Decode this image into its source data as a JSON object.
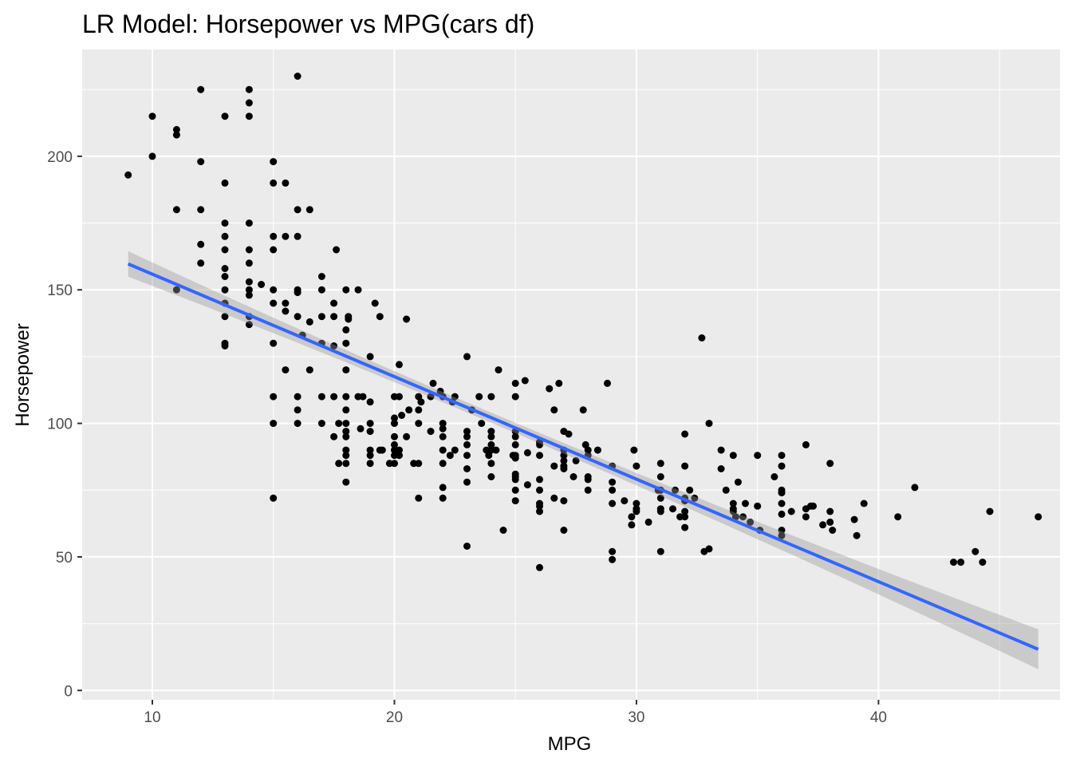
{
  "chart_data": {
    "type": "scatter",
    "title": "LR Model: Horsepower vs MPG(cars df)",
    "xlabel": "MPG",
    "ylabel": "Horsepower",
    "xlim": [
      7.1,
      47.5
    ],
    "ylim": [
      -3.5,
      240
    ],
    "x_ticks": [
      10,
      20,
      30,
      40
    ],
    "y_ticks": [
      0,
      50,
      100,
      150,
      200
    ],
    "x_tick_labels": [
      "10",
      "20",
      "30",
      "40"
    ],
    "y_tick_labels": [
      "0",
      "50",
      "100",
      "150",
      "200"
    ],
    "grid": true,
    "legend": "none",
    "colors": {
      "panel_background": "#ebebeb",
      "grid": "#ffffff",
      "points": "#000000",
      "fit_line": "#3366ff",
      "confidence_band": "#999999"
    },
    "regression": {
      "x": [
        9,
        46.6
      ],
      "y": [
        159.7,
        15.4
      ],
      "ci_halfwidth_ends": [
        4.8,
        7.5
      ],
      "ci_halfwidth_center": 1.9,
      "x_center": 23.5
    },
    "points": [
      [
        9,
        193
      ],
      [
        10,
        215
      ],
      [
        10,
        200
      ],
      [
        11,
        210
      ],
      [
        11,
        208
      ],
      [
        11,
        180
      ],
      [
        11,
        150
      ],
      [
        12,
        225
      ],
      [
        12,
        198
      ],
      [
        12,
        180
      ],
      [
        12,
        167
      ],
      [
        12,
        160
      ],
      [
        13,
        215
      ],
      [
        13,
        190
      ],
      [
        13,
        175
      ],
      [
        13,
        170
      ],
      [
        13,
        165
      ],
      [
        13,
        158
      ],
      [
        13,
        155
      ],
      [
        13,
        150
      ],
      [
        13,
        145
      ],
      [
        13,
        140
      ],
      [
        13,
        130
      ],
      [
        13,
        129
      ],
      [
        14,
        225
      ],
      [
        14,
        220
      ],
      [
        14,
        215
      ],
      [
        14,
        175
      ],
      [
        14,
        165
      ],
      [
        14,
        160
      ],
      [
        14,
        153
      ],
      [
        14,
        150
      ],
      [
        14,
        148
      ],
      [
        14,
        140
      ],
      [
        14,
        137
      ],
      [
        14.5,
        152
      ],
      [
        15,
        198
      ],
      [
        15,
        190
      ],
      [
        15,
        170
      ],
      [
        15,
        165
      ],
      [
        15,
        150
      ],
      [
        15,
        145
      ],
      [
        15,
        130
      ],
      [
        15,
        110
      ],
      [
        15,
        100
      ],
      [
        15,
        72
      ],
      [
        15.5,
        190
      ],
      [
        15.5,
        170
      ],
      [
        15.5,
        145
      ],
      [
        15.5,
        142
      ],
      [
        15.5,
        120
      ],
      [
        16,
        230
      ],
      [
        16,
        180
      ],
      [
        16,
        170
      ],
      [
        16,
        150
      ],
      [
        16,
        149
      ],
      [
        16,
        140
      ],
      [
        16,
        110
      ],
      [
        16,
        105
      ],
      [
        16,
        100
      ],
      [
        16.2,
        133
      ],
      [
        16.5,
        180
      ],
      [
        16.5,
        138
      ],
      [
        16.5,
        120
      ],
      [
        17,
        155
      ],
      [
        17,
        150
      ],
      [
        17,
        140
      ],
      [
        17,
        130
      ],
      [
        17,
        110
      ],
      [
        17,
        100
      ],
      [
        17.5,
        145
      ],
      [
        17.5,
        140
      ],
      [
        17.5,
        129
      ],
      [
        17.5,
        110
      ],
      [
        17.5,
        95
      ],
      [
        17.6,
        165
      ],
      [
        17.7,
        85
      ],
      [
        17.7,
        100
      ],
      [
        18,
        150
      ],
      [
        18,
        135
      ],
      [
        18,
        130
      ],
      [
        18,
        120
      ],
      [
        18,
        110
      ],
      [
        18,
        105
      ],
      [
        18,
        100
      ],
      [
        18,
        97
      ],
      [
        18,
        95
      ],
      [
        18,
        90
      ],
      [
        18,
        88
      ],
      [
        18,
        85
      ],
      [
        18,
        78
      ],
      [
        18.1,
        140
      ],
      [
        18.1,
        139
      ],
      [
        18.5,
        150
      ],
      [
        18.5,
        110
      ],
      [
        18.6,
        98
      ],
      [
        18.7,
        110
      ],
      [
        19,
        125
      ],
      [
        19,
        108
      ],
      [
        19,
        100
      ],
      [
        19,
        97
      ],
      [
        19,
        90
      ],
      [
        19,
        88
      ],
      [
        19,
        85
      ],
      [
        19.2,
        145
      ],
      [
        19.4,
        140
      ],
      [
        19.4,
        90
      ],
      [
        19.5,
        90
      ],
      [
        19.8,
        85
      ],
      [
        20,
        110
      ],
      [
        20,
        102
      ],
      [
        20,
        100
      ],
      [
        20,
        95
      ],
      [
        20,
        92
      ],
      [
        20,
        90
      ],
      [
        20,
        88
      ],
      [
        20,
        85
      ],
      [
        20.2,
        122
      ],
      [
        20.2,
        110
      ],
      [
        20.2,
        90
      ],
      [
        20.2,
        88
      ],
      [
        20.3,
        103
      ],
      [
        20.5,
        139
      ],
      [
        20.5,
        95
      ],
      [
        20.6,
        105
      ],
      [
        20.8,
        85
      ],
      [
        21,
        110
      ],
      [
        21,
        105
      ],
      [
        21,
        100
      ],
      [
        21,
        85
      ],
      [
        21,
        72
      ],
      [
        21.1,
        108
      ],
      [
        21.5,
        110
      ],
      [
        21.5,
        97
      ],
      [
        21.6,
        115
      ],
      [
        21.9,
        112
      ],
      [
        22,
        110
      ],
      [
        22,
        100
      ],
      [
        22,
        98
      ],
      [
        22,
        95
      ],
      [
        22,
        90
      ],
      [
        22,
        85
      ],
      [
        22,
        76
      ],
      [
        22,
        72
      ],
      [
        22.3,
        88
      ],
      [
        22.4,
        108
      ],
      [
        22.5,
        110
      ],
      [
        22.5,
        90
      ],
      [
        23,
        125
      ],
      [
        23,
        97
      ],
      [
        23,
        95
      ],
      [
        23,
        92
      ],
      [
        23,
        88
      ],
      [
        23,
        83
      ],
      [
        23,
        78
      ],
      [
        23,
        54
      ],
      [
        23.2,
        105
      ],
      [
        23.5,
        110
      ],
      [
        23.6,
        100
      ],
      [
        23.8,
        90
      ],
      [
        23.9,
        88
      ],
      [
        24,
        110
      ],
      [
        24,
        97
      ],
      [
        24,
        95
      ],
      [
        24,
        92
      ],
      [
        24,
        90
      ],
      [
        24,
        85
      ],
      [
        24,
        80
      ],
      [
        24.2,
        90
      ],
      [
        24.3,
        120
      ],
      [
        24.5,
        60
      ],
      [
        24.9,
        88
      ],
      [
        25,
        115
      ],
      [
        25,
        110
      ],
      [
        25,
        97
      ],
      [
        25,
        95
      ],
      [
        25,
        92
      ],
      [
        25,
        88
      ],
      [
        25,
        87
      ],
      [
        25,
        81
      ],
      [
        25,
        80
      ],
      [
        25,
        79
      ],
      [
        25,
        75
      ],
      [
        25,
        71
      ],
      [
        25.4,
        116
      ],
      [
        25.5,
        89
      ],
      [
        25.5,
        77
      ],
      [
        26,
        93
      ],
      [
        26,
        92
      ],
      [
        26,
        88
      ],
      [
        26,
        79
      ],
      [
        26,
        75
      ],
      [
        26,
        70
      ],
      [
        26,
        69
      ],
      [
        26,
        67
      ],
      [
        26,
        46
      ],
      [
        26.4,
        113
      ],
      [
        26.6,
        105
      ],
      [
        26.8,
        115
      ],
      [
        26.6,
        72
      ],
      [
        26.6,
        84
      ],
      [
        27,
        97
      ],
      [
        27,
        90
      ],
      [
        27,
        88
      ],
      [
        27,
        86
      ],
      [
        27,
        84
      ],
      [
        27,
        83
      ],
      [
        27,
        71
      ],
      [
        27,
        60
      ],
      [
        27.2,
        96
      ],
      [
        27.4,
        80
      ],
      [
        27.5,
        86
      ],
      [
        27.8,
        105
      ],
      [
        27.9,
        92
      ],
      [
        28,
        90
      ],
      [
        28,
        88
      ],
      [
        28,
        79
      ],
      [
        28,
        75
      ],
      [
        28,
        80
      ],
      [
        28.4,
        90
      ],
      [
        28.8,
        115
      ],
      [
        29,
        84
      ],
      [
        29,
        78
      ],
      [
        29,
        75
      ],
      [
        29,
        70
      ],
      [
        29,
        52
      ],
      [
        29,
        49
      ],
      [
        29.5,
        71
      ],
      [
        29.8,
        65
      ],
      [
        29.8,
        62
      ],
      [
        29.9,
        90
      ],
      [
        30,
        84
      ],
      [
        30,
        70
      ],
      [
        30,
        68
      ],
      [
        30,
        67
      ],
      [
        30.5,
        63
      ],
      [
        30.9,
        75
      ],
      [
        31,
        80
      ],
      [
        31,
        75
      ],
      [
        31,
        72
      ],
      [
        31,
        68
      ],
      [
        31,
        67
      ],
      [
        31,
        52
      ],
      [
        31,
        85
      ],
      [
        31.5,
        68
      ],
      [
        31.6,
        75
      ],
      [
        31.8,
        65
      ],
      [
        32,
        96
      ],
      [
        32,
        84
      ],
      [
        32,
        72
      ],
      [
        32,
        71
      ],
      [
        32,
        67
      ],
      [
        32,
        65
      ],
      [
        32,
        61
      ],
      [
        32.2,
        75
      ],
      [
        32.4,
        72
      ],
      [
        32.7,
        132
      ],
      [
        32.8,
        52
      ],
      [
        33,
        100
      ],
      [
        33,
        53
      ],
      [
        33.5,
        90
      ],
      [
        33.5,
        83
      ],
      [
        33.7,
        75
      ],
      [
        34,
        70
      ],
      [
        34,
        68
      ],
      [
        34,
        67
      ],
      [
        34,
        88
      ],
      [
        34.1,
        65
      ],
      [
        34.2,
        78
      ],
      [
        34.4,
        65
      ],
      [
        34.5,
        70
      ],
      [
        34.7,
        63
      ],
      [
        35,
        88
      ],
      [
        35,
        69
      ],
      [
        35.1,
        60
      ],
      [
        35.7,
        80
      ],
      [
        36,
        88
      ],
      [
        36,
        84
      ],
      [
        36,
        75
      ],
      [
        36,
        74
      ],
      [
        36,
        70
      ],
      [
        36,
        66
      ],
      [
        36,
        60
      ],
      [
        36,
        58
      ],
      [
        36.4,
        67
      ],
      [
        37,
        92
      ],
      [
        37,
        68
      ],
      [
        37,
        65
      ],
      [
        37.2,
        69
      ],
      [
        37.3,
        69
      ],
      [
        37.7,
        62
      ],
      [
        38,
        85
      ],
      [
        38,
        67
      ],
      [
        38,
        63
      ],
      [
        38.1,
        60
      ],
      [
        39,
        64
      ],
      [
        39.1,
        58
      ],
      [
        39.4,
        70
      ],
      [
        40.8,
        65
      ],
      [
        41.5,
        76
      ],
      [
        43.1,
        48
      ],
      [
        43.4,
        48
      ],
      [
        44,
        52
      ],
      [
        44.3,
        48
      ],
      [
        44.6,
        67
      ],
      [
        46.6,
        65
      ]
    ]
  }
}
